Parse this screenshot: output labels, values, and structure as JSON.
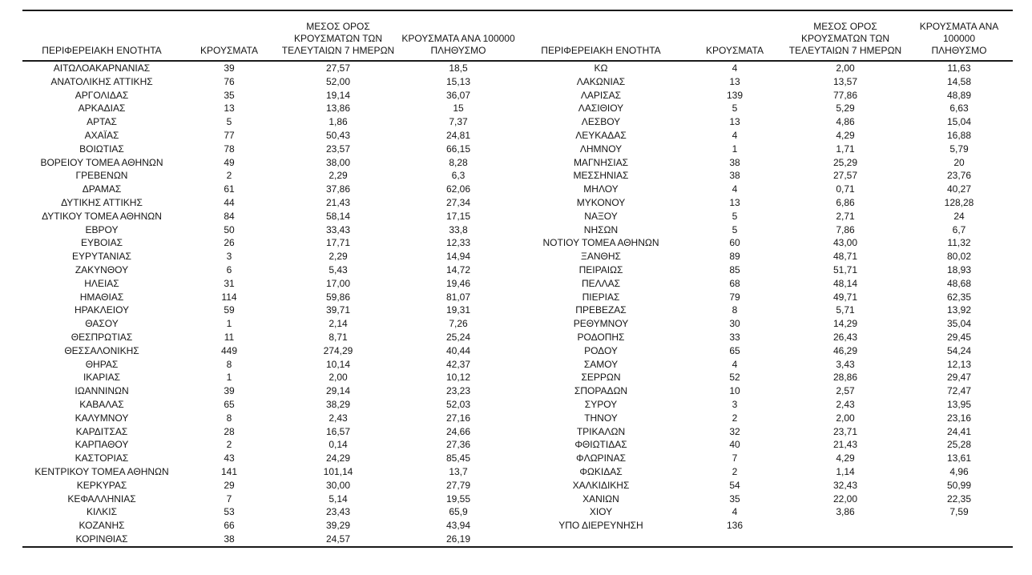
{
  "headers": {
    "region": "ΠΕΡΙΦΕΡΕΙΑΚΗ ΕΝΟΤΗΤΑ",
    "cases": "ΚΡΟΥΣΜΑΤΑ",
    "avg7": "ΜΕΣΟΣ ΟΡΟΣ\nΚΡΟΥΣΜΑΤΩΝ ΤΩΝ\nΤΕΛΕΥΤΑΙΩΝ 7 ΗΜΕΡΩΝ",
    "per100k": "ΚΡΟΥΣΜΑΤΑ ΑΝΑ 100000\nΠΛΗΘΥΣΜΟ"
  },
  "left_rows": [
    [
      "ΑΙΤΩΛΟΑΚΑΡΝΑΝΙΑΣ",
      "39",
      "27,57",
      "18,5"
    ],
    [
      "ΑΝΑΤΟΛΙΚΗΣ ΑΤΤΙΚΗΣ",
      "76",
      "52,00",
      "15,13"
    ],
    [
      "ΑΡΓΟΛΙΔΑΣ",
      "35",
      "19,14",
      "36,07"
    ],
    [
      "ΑΡΚΑΔΙΑΣ",
      "13",
      "13,86",
      "15"
    ],
    [
      "ΑΡΤΑΣ",
      "5",
      "1,86",
      "7,37"
    ],
    [
      "ΑΧΑΪΑΣ",
      "77",
      "50,43",
      "24,81"
    ],
    [
      "ΒΟΙΩΤΙΑΣ",
      "78",
      "23,57",
      "66,15"
    ],
    [
      "ΒΟΡΕΙΟΥ ΤΟΜΕΑ ΑΘΗΝΩΝ",
      "49",
      "38,00",
      "8,28"
    ],
    [
      "ΓΡΕΒΕΝΩΝ",
      "2",
      "2,29",
      "6,3"
    ],
    [
      "ΔΡΑΜΑΣ",
      "61",
      "37,86",
      "62,06"
    ],
    [
      "ΔΥΤΙΚΗΣ ΑΤΤΙΚΗΣ",
      "44",
      "21,43",
      "27,34"
    ],
    [
      "ΔΥΤΙΚΟΥ ΤΟΜΕΑ ΑΘΗΝΩΝ",
      "84",
      "58,14",
      "17,15"
    ],
    [
      "ΕΒΡΟΥ",
      "50",
      "33,43",
      "33,8"
    ],
    [
      "ΕΥΒΟΙΑΣ",
      "26",
      "17,71",
      "12,33"
    ],
    [
      "ΕΥΡΥΤΑΝΙΑΣ",
      "3",
      "2,29",
      "14,94"
    ],
    [
      "ΖΑΚΥΝΘΟΥ",
      "6",
      "5,43",
      "14,72"
    ],
    [
      "ΗΛΕΙΑΣ",
      "31",
      "17,00",
      "19,46"
    ],
    [
      "ΗΜΑΘΙΑΣ",
      "114",
      "59,86",
      "81,07"
    ],
    [
      "ΗΡΑΚΛΕΙΟΥ",
      "59",
      "39,71",
      "19,31"
    ],
    [
      "ΘΑΣΟΥ",
      "1",
      "2,14",
      "7,26"
    ],
    [
      "ΘΕΣΠΡΩΤΙΑΣ",
      "11",
      "8,71",
      "25,24"
    ],
    [
      "ΘΕΣΣΑΛΟΝΙΚΗΣ",
      "449",
      "274,29",
      "40,44"
    ],
    [
      "ΘΗΡΑΣ",
      "8",
      "10,14",
      "42,37"
    ],
    [
      "ΙΚΑΡΙΑΣ",
      "1",
      "2,00",
      "10,12"
    ],
    [
      "ΙΩΑΝΝΙΝΩΝ",
      "39",
      "29,14",
      "23,23"
    ],
    [
      "ΚΑΒΑΛΑΣ",
      "65",
      "38,29",
      "52,03"
    ],
    [
      "ΚΑΛΥΜΝΟΥ",
      "8",
      "2,43",
      "27,16"
    ],
    [
      "ΚΑΡΔΙΤΣΑΣ",
      "28",
      "16,57",
      "24,66"
    ],
    [
      "ΚΑΡΠΑΘΟΥ",
      "2",
      "0,14",
      "27,36"
    ],
    [
      "ΚΑΣΤΟΡΙΑΣ",
      "43",
      "24,29",
      "85,45"
    ],
    [
      "ΚΕΝΤΡΙΚΟΥ ΤΟΜΕΑ ΑΘΗΝΩΝ",
      "141",
      "101,14",
      "13,7"
    ],
    [
      "ΚΕΡΚΥΡΑΣ",
      "29",
      "30,00",
      "27,79"
    ],
    [
      "ΚΕΦΑΛΛΗΝΙΑΣ",
      "7",
      "5,14",
      "19,55"
    ],
    [
      "ΚΙΛΚΙΣ",
      "53",
      "23,43",
      "65,9"
    ],
    [
      "ΚΟΖΑΝΗΣ",
      "66",
      "39,29",
      "43,94"
    ],
    [
      "ΚΟΡΙΝΘΙΑΣ",
      "38",
      "24,57",
      "26,19"
    ]
  ],
  "right_rows": [
    [
      "ΚΩ",
      "4",
      "2,00",
      "11,63"
    ],
    [
      "ΛΑΚΩΝΙΑΣ",
      "13",
      "13,57",
      "14,58"
    ],
    [
      "ΛΑΡΙΣΑΣ",
      "139",
      "77,86",
      "48,89"
    ],
    [
      "ΛΑΣΙΘΙΟΥ",
      "5",
      "5,29",
      "6,63"
    ],
    [
      "ΛΕΣΒΟΥ",
      "13",
      "4,86",
      "15,04"
    ],
    [
      "ΛΕΥΚΑΔΑΣ",
      "4",
      "4,29",
      "16,88"
    ],
    [
      "ΛΗΜΝΟΥ",
      "1",
      "1,71",
      "5,79"
    ],
    [
      "ΜΑΓΝΗΣΙΑΣ",
      "38",
      "25,29",
      "20"
    ],
    [
      "ΜΕΣΣΗΝΙΑΣ",
      "38",
      "27,57",
      "23,76"
    ],
    [
      "ΜΗΛΟΥ",
      "4",
      "0,71",
      "40,27"
    ],
    [
      "ΜΥΚΟΝΟΥ",
      "13",
      "6,86",
      "128,28"
    ],
    [
      "ΝΑΞΟΥ",
      "5",
      "2,71",
      "24"
    ],
    [
      "ΝΗΣΩΝ",
      "5",
      "7,86",
      "6,7"
    ],
    [
      "ΝΟΤΙΟΥ ΤΟΜΕΑ ΑΘΗΝΩΝ",
      "60",
      "43,00",
      "11,32"
    ],
    [
      "ΞΑΝΘΗΣ",
      "89",
      "48,71",
      "80,02"
    ],
    [
      "ΠΕΙΡΑΙΩΣ",
      "85",
      "51,71",
      "18,93"
    ],
    [
      "ΠΕΛΛΑΣ",
      "68",
      "48,14",
      "48,68"
    ],
    [
      "ΠΙΕΡΙΑΣ",
      "79",
      "49,71",
      "62,35"
    ],
    [
      "ΠΡΕΒΕΖΑΣ",
      "8",
      "5,71",
      "13,92"
    ],
    [
      "ΡΕΘΥΜΝΟΥ",
      "30",
      "14,29",
      "35,04"
    ],
    [
      "ΡΟΔΟΠΗΣ",
      "33",
      "26,43",
      "29,45"
    ],
    [
      "ΡΟΔΟΥ",
      "65",
      "46,29",
      "54,24"
    ],
    [
      "ΣΑΜΟΥ",
      "4",
      "3,43",
      "12,13"
    ],
    [
      "ΣΕΡΡΩΝ",
      "52",
      "28,86",
      "29,47"
    ],
    [
      "ΣΠΟΡΑΔΩΝ",
      "10",
      "2,57",
      "72,47"
    ],
    [
      "ΣΥΡΟΥ",
      "3",
      "2,43",
      "13,95"
    ],
    [
      "ΤΗΝΟΥ",
      "2",
      "2,00",
      "23,16"
    ],
    [
      "ΤΡΙΚΑΛΩΝ",
      "32",
      "23,71",
      "24,41"
    ],
    [
      "ΦΘΙΩΤΙΔΑΣ",
      "40",
      "21,43",
      "25,28"
    ],
    [
      "ΦΛΩΡΙΝΑΣ",
      "7",
      "4,29",
      "13,61"
    ],
    [
      "ΦΩΚΙΔΑΣ",
      "2",
      "1,14",
      "4,96"
    ],
    [
      "ΧΑΛΚΙΔΙΚΗΣ",
      "54",
      "32,43",
      "50,99"
    ],
    [
      "ΧΑΝΙΩΝ",
      "35",
      "22,00",
      "22,35"
    ],
    [
      "ΧΙΟΥ",
      "4",
      "3,86",
      "7,59"
    ],
    [
      "ΥΠΟ ΔΙΕΡΕΥΝΗΣΗ",
      "136",
      "",
      ""
    ]
  ]
}
